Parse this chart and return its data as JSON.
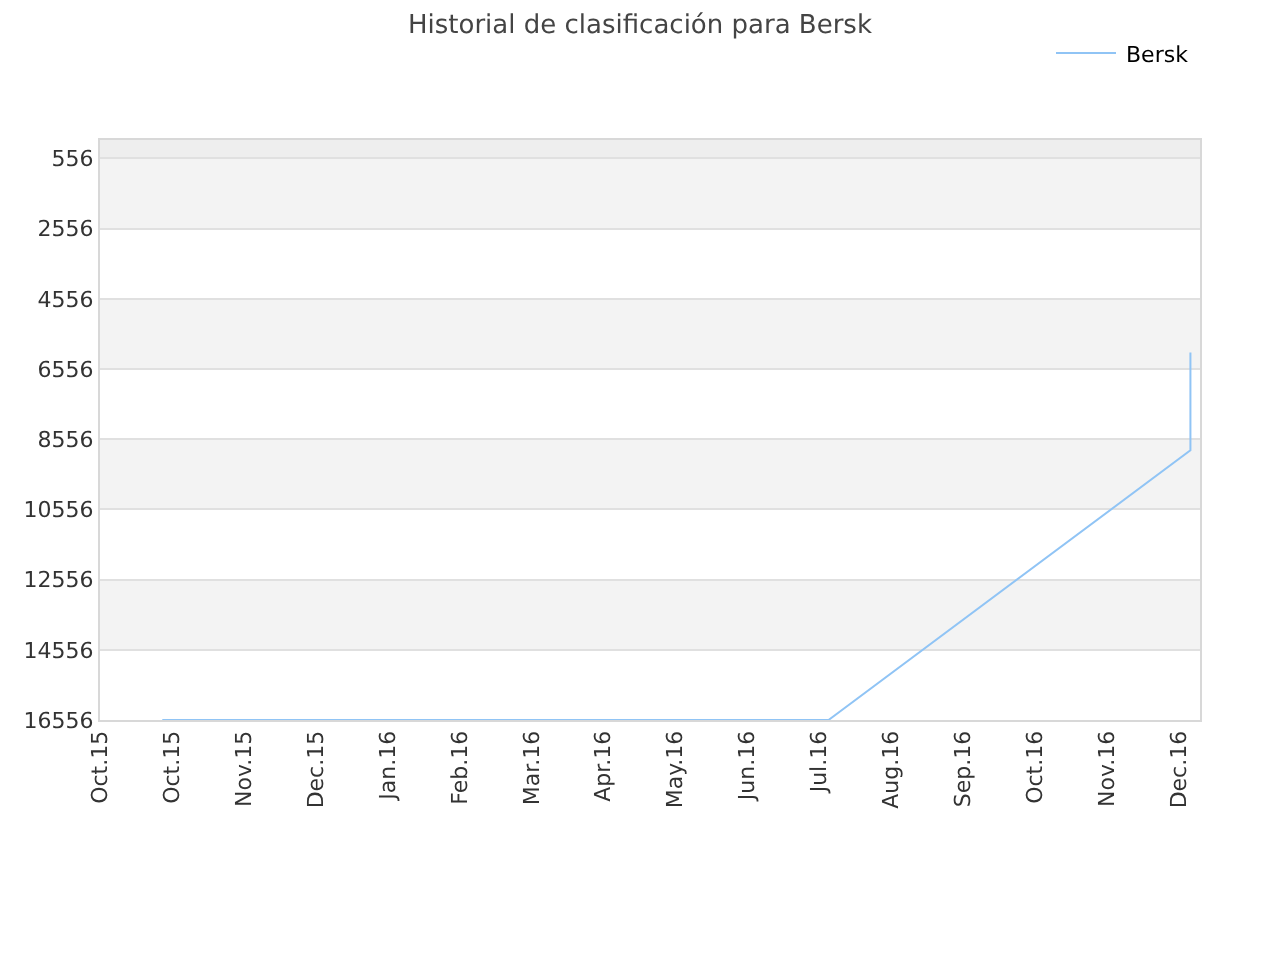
{
  "chart_data": {
    "type": "line",
    "title": "Historial de clasificación para Bersk",
    "x": [
      "2015-10-27",
      "2016-07-31",
      "2016-12-29",
      "2016-12-29"
    ],
    "series": [
      {
        "name": "Bersk",
        "color": "#90c4f5",
        "values": [
          16556,
          16556,
          8872,
          6082
        ]
      }
    ],
    "xlim": [
      "2015-10-01",
      "2017-01-02"
    ],
    "xticks": [
      {
        "value": "2015-10-01",
        "label": "Oct.15"
      },
      {
        "value": "2015-10-31",
        "label": "Oct.15"
      },
      {
        "value": "2015-11-30",
        "label": "Nov.15"
      },
      {
        "value": "2015-12-30",
        "label": "Dec.15"
      },
      {
        "value": "2016-01-29",
        "label": "Jan.16"
      },
      {
        "value": "2016-02-28",
        "label": "Feb.16"
      },
      {
        "value": "2016-03-29",
        "label": "Mar.16"
      },
      {
        "value": "2016-04-28",
        "label": "Apr.16"
      },
      {
        "value": "2016-05-28",
        "label": "May.16"
      },
      {
        "value": "2016-06-27",
        "label": "Jun.16"
      },
      {
        "value": "2016-07-27",
        "label": "Jul.16"
      },
      {
        "value": "2016-08-26",
        "label": "Aug.16"
      },
      {
        "value": "2016-09-25",
        "label": "Sep.16"
      },
      {
        "value": "2016-10-25",
        "label": "Oct.16"
      },
      {
        "value": "2016-11-24",
        "label": "Nov.16"
      },
      {
        "value": "2016-12-24",
        "label": "Dec.16"
      }
    ],
    "ylim": [
      16556,
      30
    ],
    "yticks": [
      556,
      2556,
      4556,
      6556,
      8556,
      10556,
      12556,
      14556,
      16556
    ],
    "bands": [
      {
        "axis": "y",
        "from": 30,
        "to": 556,
        "color": "#eeeeee"
      },
      {
        "axis": "y",
        "from": 556,
        "to": 2556,
        "color": "#f3f3f3"
      },
      {
        "axis": "y",
        "from": 4556,
        "to": 6556,
        "color": "#f3f3f3"
      },
      {
        "axis": "y",
        "from": 8556,
        "to": 10556,
        "color": "#f3f3f3"
      },
      {
        "axis": "y",
        "from": 12556,
        "to": 14556,
        "color": "#f3f3f3"
      }
    ],
    "grid": "y",
    "legend": "top right",
    "marker": "none",
    "line_style": "solid"
  }
}
